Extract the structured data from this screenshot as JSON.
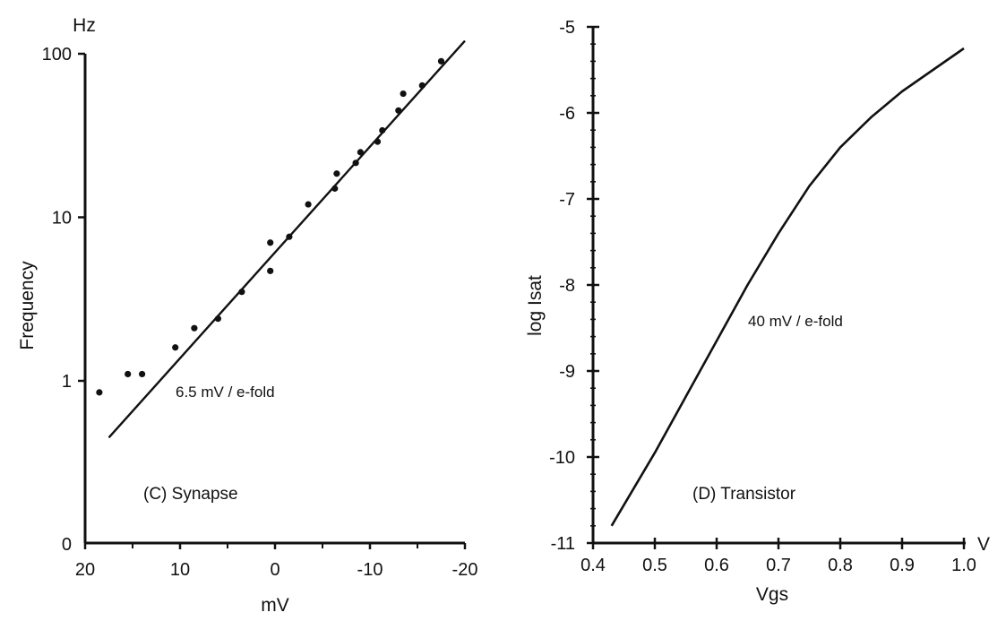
{
  "chart_data": [
    {
      "type": "scatter",
      "panel_label": "(C) Synapse",
      "xlabel": "mV",
      "ylabel": "Frequency",
      "y_unit": "Hz",
      "x_reversed": true,
      "y_scale": "log",
      "xlim": [
        20,
        -20
      ],
      "x_ticks": [
        20,
        10,
        0,
        -10,
        -20
      ],
      "x_tick_labels": [
        "20",
        "10",
        "0",
        "-10",
        "-20"
      ],
      "y_ticks": [
        1,
        10,
        100
      ],
      "y_tick_labels": [
        "1",
        "10",
        "100"
      ],
      "y_origin_label": "0",
      "grid": false,
      "series": [
        {
          "kind": "points",
          "x": [
            18.5,
            15.5,
            14,
            10.5,
            8.5,
            6,
            3.5,
            0.5,
            0.5,
            -1.5,
            -3.5,
            -6.3,
            -6.5,
            -8.5,
            -9,
            -10.8,
            -11.3,
            -13,
            -13.5,
            -15.5,
            -17.5
          ],
          "y": [
            0.85,
            1.1,
            1.1,
            1.6,
            2.1,
            2.4,
            3.5,
            4.7,
            7.0,
            7.6,
            12,
            15,
            18.5,
            21.5,
            25,
            29,
            34,
            45,
            57,
            64,
            90
          ]
        },
        {
          "kind": "fit-line",
          "x": [
            17.5,
            -20
          ],
          "y": [
            0.45,
            120
          ]
        }
      ],
      "annotations": [
        "6.5 mV / e-fold"
      ]
    },
    {
      "type": "line",
      "panel_label": "(D) Transistor",
      "xlabel": "Vgs",
      "ylabel": "log Isat",
      "x_unit": "V",
      "xlim": [
        0.4,
        1.0
      ],
      "ylim": [
        -11,
        -5
      ],
      "x_ticks": [
        0.4,
        0.5,
        0.6,
        0.7,
        0.8,
        0.9,
        1.0
      ],
      "x_tick_labels": [
        "0.4",
        "0.5",
        "0.6",
        "0.7",
        "0.8",
        "0.9",
        "1.0"
      ],
      "y_ticks": [
        -11,
        -10,
        -9,
        -8,
        -7,
        -6,
        -5
      ],
      "y_tick_labels": [
        "-11",
        "-10",
        "-9",
        "-8",
        "-7",
        "-6",
        "-5"
      ],
      "grid": false,
      "series": [
        {
          "kind": "curve",
          "x": [
            0.43,
            0.5,
            0.55,
            0.6,
            0.65,
            0.7,
            0.75,
            0.8,
            0.85,
            0.9,
            0.95,
            1.0
          ],
          "y": [
            -10.8,
            -9.95,
            -9.3,
            -8.65,
            -8.0,
            -7.4,
            -6.85,
            -6.4,
            -6.05,
            -5.75,
            -5.5,
            -5.25
          ]
        }
      ],
      "annotations": [
        "40 mV / e-fold"
      ]
    }
  ]
}
